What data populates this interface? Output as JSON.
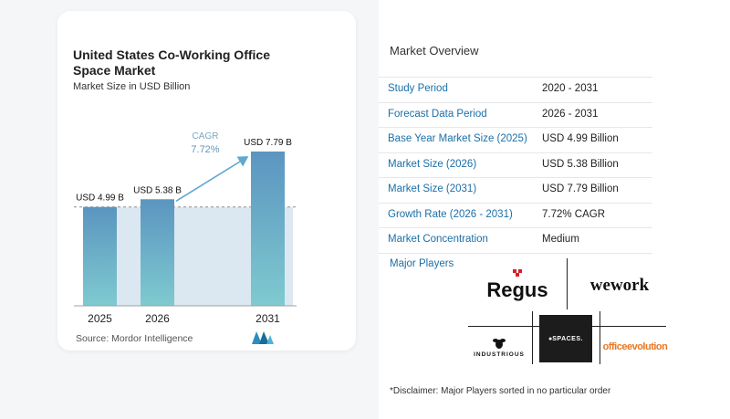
{
  "chart": {
    "title": "United States Co-Working Office Space Market",
    "subtitle": "Market Size in USD Billion",
    "source": "Source:  Mordor Intelligence",
    "cagr_label": "CAGR",
    "cagr_value": "7.72%"
  },
  "chart_data": {
    "type": "bar",
    "categories": [
      "2025",
      "2026",
      "2031"
    ],
    "values": [
      4.99,
      5.38,
      7.79
    ],
    "data_labels": [
      "USD 4.99 B",
      "USD 5.38 B",
      "USD 7.79 B"
    ],
    "title": "United States Co-Working Office Space Market",
    "subtitle": "Market Size in USD Billion",
    "xlabel": "",
    "ylabel": "",
    "ylim": [
      0,
      7.79
    ],
    "grid": false,
    "annotation": {
      "label": "CAGR",
      "value": "7.72%"
    },
    "colors": {
      "bar_top": "#5b95c0",
      "bar_bottom": "#7fcad0",
      "band": "#dce8f1",
      "arrow": "#5fa8cf"
    }
  },
  "overview": {
    "title": "Market Overview",
    "rows": [
      {
        "label": "Study Period",
        "value": "2020 - 2031"
      },
      {
        "label": "Forecast Data Period",
        "value": "2026 - 2031"
      },
      {
        "label": "Base Year Market Size (2025)",
        "value": "USD 4.99 Billion"
      },
      {
        "label": "Market Size (2026)",
        "value": "USD 5.38 Billion"
      },
      {
        "label": "Market Size (2031)",
        "value": "USD 7.79 Billion"
      },
      {
        "label": "Growth Rate (2026 - 2031)",
        "value": "7.72% CAGR"
      },
      {
        "label": "Market Concentration",
        "value": "Medium"
      }
    ],
    "major_players_label": "Major Players",
    "players": [
      "Regus",
      "wework",
      "INDUSTRIOUS",
      "SPACES.",
      "officeevolution"
    ],
    "disclaimer": "*Disclaimer: Major Players sorted in no particular order"
  }
}
